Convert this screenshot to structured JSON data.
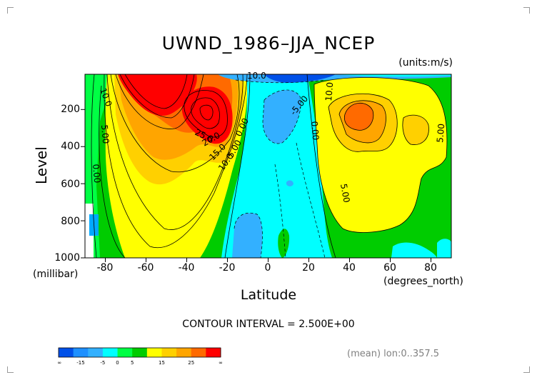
{
  "chart_data": {
    "type": "contour",
    "title": "UWND_1986–JJA_NCEP",
    "units_note": "(units:m/s)",
    "ylabel": "Level",
    "ylabel_units": "(millibar)",
    "xlabel": "Latitude",
    "xlabel_units": "(degrees_north)",
    "x_ticks": [
      "-80",
      "-60",
      "-40",
      "-20",
      "0",
      "20",
      "40",
      "60",
      "80"
    ],
    "x_tick_values": [
      -80,
      -60,
      -40,
      -20,
      0,
      20,
      40,
      60,
      80
    ],
    "y_ticks": [
      "200",
      "400",
      "600",
      "800",
      "1000"
    ],
    "y_tick_values": [
      200,
      400,
      600,
      800,
      1000
    ],
    "xlim": [
      -90,
      90
    ],
    "ylim": [
      1000,
      10
    ],
    "contour_interval_text": "CONTOUR INTERVAL = 2.500E+00",
    "contour_labels": [
      "10.0",
      "5.00",
      "0.00",
      "25.0",
      "20.0",
      "15.0",
      "10.0",
      "5.00",
      "0.00",
      "10.0",
      "-5.00",
      "10.0",
      "0.00",
      "5.00",
      "5.00"
    ],
    "jets": [
      {
        "lat": -28,
        "level": 200,
        "max": 30
      },
      {
        "lat": -50,
        "level": 50,
        "max": 35
      },
      {
        "lat": 44,
        "level": 200,
        "max": 20
      }
    ],
    "colorbar": {
      "colors": [
        "#0050e8",
        "#1e90ff",
        "#33b0ff",
        "#00ffff",
        "#00ff44",
        "#00cc00",
        "#ffff00",
        "#ffd000",
        "#ffa500",
        "#ff6a00",
        "#ff0000"
      ],
      "tick_labels": [
        "-∞",
        "-15",
        "-5",
        "0",
        "5",
        "15",
        "25",
        "∞"
      ]
    },
    "footer_note": "(mean) lon:0..357.5"
  }
}
